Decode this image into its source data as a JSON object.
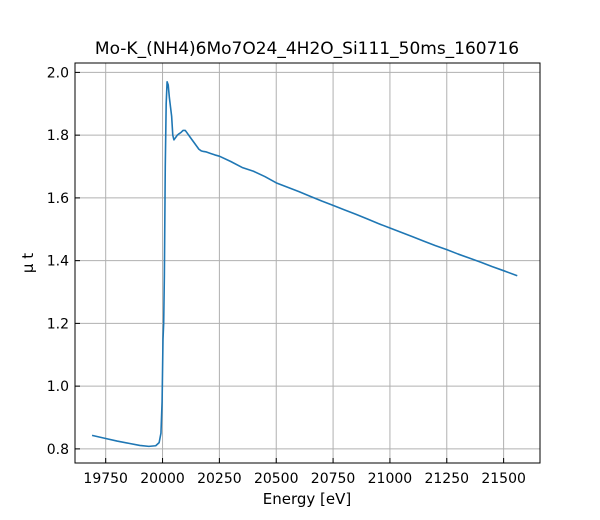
{
  "chart_data": {
    "type": "line",
    "title": "Mo-K_(NH4)6Mo7O24_4H2O_Si111_50ms_160716",
    "xlabel": "Energy [eV]",
    "ylabel": "μ t",
    "xlim": [
      19615,
      21660
    ],
    "ylim": [
      0.755,
      2.03
    ],
    "x_ticks": [
      19750,
      20000,
      20250,
      20500,
      20750,
      21000,
      21250,
      21500
    ],
    "x_tick_labels": [
      "19750",
      "20000",
      "20250",
      "20500",
      "20750",
      "21000",
      "21250",
      "21500"
    ],
    "y_ticks": [
      0.8,
      1.0,
      1.2,
      1.4,
      1.6,
      1.8,
      2.0
    ],
    "y_tick_labels": [
      "0.8",
      "1.0",
      "1.2",
      "1.4",
      "1.6",
      "1.8",
      "2.0"
    ],
    "grid": true,
    "series": [
      {
        "color": "#1f77b4",
        "x": [
          19690,
          19750,
          19800,
          19850,
          19900,
          19940,
          19970,
          19985,
          19993,
          19998,
          20002,
          20005,
          20008,
          20012,
          20016,
          20020,
          20025,
          20030,
          20035,
          20040,
          20045,
          20050,
          20055,
          20060,
          20065,
          20070,
          20080,
          20090,
          20100,
          20110,
          20120,
          20130,
          20140,
          20150,
          20160,
          20170,
          20180,
          20190,
          20210,
          20230,
          20250,
          20300,
          20350,
          20400,
          20450,
          20500,
          20550,
          20600,
          20650,
          20700,
          20750,
          20800,
          20850,
          20900,
          20950,
          21000,
          21050,
          21100,
          21150,
          21200,
          21250,
          21300,
          21350,
          21400,
          21450,
          21500,
          21560
        ],
        "y": [
          0.843,
          0.833,
          0.825,
          0.818,
          0.811,
          0.808,
          0.81,
          0.82,
          0.85,
          0.95,
          1.15,
          1.2,
          1.35,
          1.7,
          1.9,
          1.97,
          1.96,
          1.92,
          1.89,
          1.86,
          1.8,
          1.785,
          1.79,
          1.795,
          1.8,
          1.803,
          1.808,
          1.815,
          1.815,
          1.805,
          1.795,
          1.785,
          1.775,
          1.765,
          1.755,
          1.75,
          1.748,
          1.747,
          1.742,
          1.737,
          1.733,
          1.716,
          1.697,
          1.685,
          1.668,
          1.648,
          1.634,
          1.62,
          1.605,
          1.59,
          1.576,
          1.562,
          1.548,
          1.533,
          1.518,
          1.504,
          1.49,
          1.476,
          1.462,
          1.448,
          1.435,
          1.421,
          1.408,
          1.395,
          1.381,
          1.368,
          1.352
        ]
      }
    ]
  }
}
